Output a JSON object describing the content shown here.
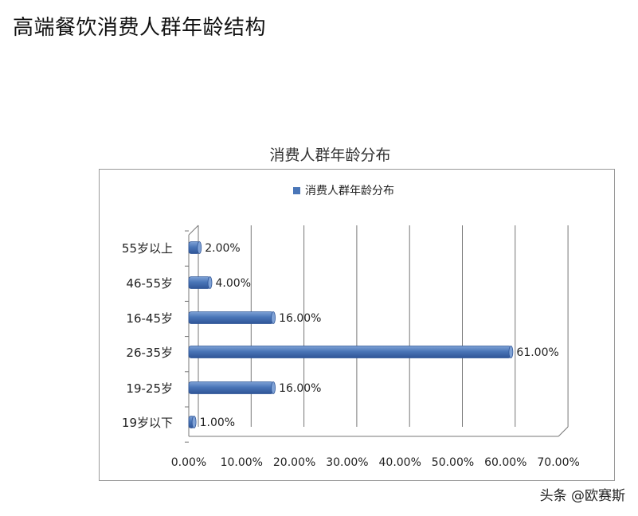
{
  "page": {
    "title": "高端餐饮消费人群年龄结构",
    "watermark": "头条 @欧赛斯"
  },
  "colors": {
    "bar": "#4a76b8",
    "bar_dark": "#2f5597",
    "bar_light": "#7fa2d6",
    "grid": "#777777"
  },
  "chart_data": {
    "type": "bar",
    "orientation": "horizontal",
    "title": "消费人群年龄分布",
    "categories": [
      "55岁以上",
      "46-55岁",
      "16-45岁",
      "26-35岁",
      "19-25岁",
      "19岁以下"
    ],
    "series": [
      {
        "name": "消费人群年龄分布",
        "values": [
          2,
          4,
          16,
          61,
          16,
          1
        ]
      }
    ],
    "data_labels": [
      "2.00%",
      "4.00%",
      "16.00%",
      "61.00%",
      "16.00%",
      "1.00%"
    ],
    "x_ticks": [
      "0.00%",
      "10.00%",
      "20.00%",
      "30.00%",
      "40.00%",
      "50.00%",
      "60.00%",
      "70.00%"
    ],
    "xlim": [
      0,
      70
    ],
    "grid": true,
    "legend": "top"
  }
}
